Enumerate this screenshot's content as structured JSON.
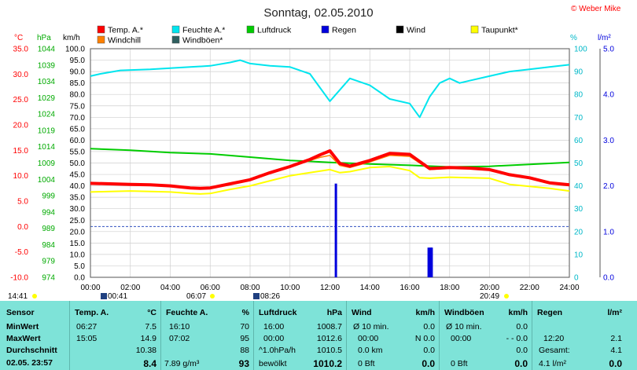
{
  "title": "Sonntag, 02.05.2010",
  "credit": "© Weber Mike",
  "colors": {
    "temp": "#ff0000",
    "humidity": "#00e5ee",
    "pressure": "#00cc00",
    "rain": "#0000dd",
    "wind": "#000000",
    "dewpoint": "#ffff00",
    "windchill": "#ff8000",
    "gust": "#306060"
  },
  "legend": [
    {
      "label": "Temp. A.*",
      "color": "#ff0000"
    },
    {
      "label": "Feuchte A.*",
      "color": "#00e5ee"
    },
    {
      "label": "Luftdruck",
      "color": "#00cc00"
    },
    {
      "label": "Regen",
      "color": "#0000dd"
    },
    {
      "label": "Wind",
      "color": "#000000"
    },
    {
      "label": "Taupunkt*",
      "color": "#ffff00"
    },
    {
      "label": "Windchill",
      "color": "#ff8000"
    },
    {
      "label": "Windböen*",
      "color": "#306060"
    }
  ],
  "axis_headers": {
    "temp": "°C",
    "pressure": "hPa",
    "wind": "km/h",
    "humidity": "%",
    "rain": "l/m²"
  },
  "markers": {
    "sunrise": "06:07",
    "sunset": "20:49",
    "moonrise": "00:41",
    "moonset": "08:26",
    "day_start": "14:41"
  },
  "chart_data": {
    "type": "line",
    "x_ticks": [
      "00:00",
      "02:00",
      "04:00",
      "06:00",
      "08:00",
      "10:00",
      "12:00",
      "14:00",
      "16:00",
      "18:00",
      "20:00",
      "22:00",
      "24:00"
    ],
    "temp_ticks": [
      "35.0",
      "30.0",
      "25.0",
      "20.0",
      "15.0",
      "10.0",
      "5.0",
      "0.0",
      "-5.0",
      "-10.0"
    ],
    "pressure_ticks": [
      "1044",
      "1039",
      "1034",
      "1029",
      "1024",
      "1019",
      "1014",
      "1009",
      "1004",
      "999",
      "994",
      "989",
      "984",
      "979",
      "974"
    ],
    "wind_ticks": [
      "100.0",
      "95.0",
      "90.0",
      "85.0",
      "80.0",
      "75.0",
      "70.0",
      "65.0",
      "60.0",
      "55.0",
      "50.0",
      "45.0",
      "40.0",
      "35.0",
      "30.0",
      "25.0",
      "20.0",
      "15.0",
      "10.0",
      "5.0",
      "0.0"
    ],
    "humidity_ticks": [
      "100",
      "90",
      "80",
      "70",
      "60",
      "50",
      "40",
      "30",
      "20",
      "10",
      "0"
    ],
    "rain_ticks": [
      "5.0",
      "4.0",
      "3.0",
      "2.0",
      "1.0",
      "0.0"
    ],
    "temp_ylim": [
      -10,
      35
    ],
    "humidity_ylim": [
      0,
      100
    ],
    "rain_ylim": [
      0,
      5
    ],
    "series": [
      {
        "name": "Temp. A.*",
        "axis": "temp",
        "x": [
          0,
          1,
          2,
          3,
          4,
          5,
          5.5,
          6,
          7,
          8,
          9,
          10,
          11,
          11.5,
          12,
          12.5,
          13,
          14,
          15,
          16,
          16.5,
          17,
          18,
          19,
          20,
          21,
          22,
          23,
          24
        ],
        "y": [
          8.5,
          8.4,
          8.3,
          8.2,
          8.0,
          7.6,
          7.5,
          7.6,
          8.4,
          9.2,
          10.6,
          11.8,
          13.2,
          14.1,
          14.9,
          12.4,
          11.9,
          13.0,
          14.4,
          14.2,
          12.8,
          11.4,
          11.6,
          11.5,
          11.2,
          10.2,
          9.6,
          8.6,
          8.2
        ]
      },
      {
        "name": "Windchill",
        "axis": "temp",
        "x": [
          0,
          1,
          2,
          3,
          4,
          5,
          5.5,
          6,
          7,
          8,
          9,
          10,
          11,
          11.5,
          12,
          12.5,
          13,
          14,
          15,
          16,
          16.5,
          17,
          18,
          19,
          20,
          21,
          22,
          23,
          24
        ],
        "y": [
          8.5,
          8.4,
          8.3,
          8.2,
          8.0,
          7.6,
          7.5,
          7.6,
          8.4,
          9.2,
          10.6,
          11.8,
          13.0,
          13.6,
          14.0,
          12.0,
          11.6,
          12.7,
          14.0,
          13.8,
          12.5,
          11.2,
          11.5,
          11.4,
          11.1,
          10.1,
          9.5,
          8.5,
          8.1
        ]
      },
      {
        "name": "Taupunkt*",
        "axis": "temp",
        "x": [
          0,
          1,
          2,
          3,
          4,
          5,
          5.5,
          6,
          7,
          8,
          9,
          10,
          11,
          12,
          12.5,
          13,
          14,
          15,
          16,
          16.5,
          17,
          18,
          19,
          20,
          21,
          22,
          23,
          24
        ],
        "y": [
          6.8,
          6.9,
          7.0,
          6.9,
          6.8,
          6.5,
          6.4,
          6.5,
          7.3,
          8.0,
          9.0,
          10.0,
          10.6,
          11.2,
          10.6,
          10.8,
          11.6,
          11.8,
          11.0,
          9.6,
          9.5,
          9.7,
          9.6,
          9.5,
          8.3,
          7.9,
          7.5,
          7.0
        ]
      },
      {
        "name": "Feuchte A.*",
        "axis": "humidity",
        "x": [
          0,
          0.5,
          1.5,
          3,
          4,
          5,
          6,
          7,
          7.5,
          8,
          9,
          10,
          11,
          11.5,
          12,
          13,
          14,
          15,
          16,
          16.5,
          17,
          17.5,
          18,
          18.5,
          19,
          20,
          21,
          22,
          23,
          24
        ],
        "y": [
          88,
          89,
          90.5,
          91,
          91.5,
          92,
          92.5,
          94,
          95,
          93.5,
          92.5,
          92,
          89,
          83,
          77,
          87,
          84,
          78,
          76,
          70,
          79,
          85,
          87,
          85,
          86,
          88,
          90,
          91,
          92,
          93
        ]
      },
      {
        "name": "Luftdruck",
        "axis": "pressure",
        "x": [
          0,
          2,
          4,
          6,
          8,
          10,
          12,
          14,
          16,
          18,
          20,
          22,
          24
        ],
        "y": [
          1013.4,
          1012.9,
          1012.2,
          1011.8,
          1010.8,
          1009.8,
          1009.2,
          1008.7,
          1008.3,
          1007.8,
          1008.0,
          1008.6,
          1009.2
        ]
      },
      {
        "name": "Regen",
        "axis": "rain",
        "type": "bar",
        "x": [
          12.3,
          16.95,
          17.05,
          17.1
        ],
        "y": [
          2.05,
          0.65,
          0.65,
          0.65
        ]
      }
    ]
  },
  "table": {
    "row_labels": {
      "title": "Sensor",
      "min": "MinWert",
      "max": "MaxWert",
      "avg": "Durchschnitt",
      "date": "02.05. 23:57"
    },
    "temp": {
      "title": "Temp. A.",
      "unit": "°C",
      "min_time": "06:27",
      "min": "7.5",
      "max_time": "15:05",
      "max": "14.9",
      "avg": "10.38",
      "cur": "8.4"
    },
    "humidity": {
      "title": "Feuchte A.",
      "unit": "%",
      "min_time": "16:10",
      "min": "70",
      "max_time": "07:02",
      "max": "95",
      "avg": "88",
      "cur_abs": "7.89 g/m³",
      "cur": "93"
    },
    "pressure": {
      "title": "Luftdruck",
      "unit": "hPa",
      "min_time": "16:00",
      "min": "1008.7",
      "max_time": "00:00",
      "max": "1012.6",
      "trend": "^1.0hPa/h",
      "avg": "1010.5",
      "cond": "bewölkt",
      "cur": "1010.2"
    },
    "wind": {
      "title": "Wind",
      "unit": "km/h",
      "r1a": "Ø 10 min.",
      "r1b": "0.0",
      "r2a": "00:00",
      "r2b": "N 0.0",
      "r3a": "0.0 km",
      "r3b": "0.0",
      "r4a": "0 Bft",
      "r4b": "0.0"
    },
    "gust": {
      "title": "Windböen",
      "unit": "km/h",
      "r1a": "Ø 10 min.",
      "r1b": "0.0",
      "r2a": "00:00",
      "r2b": "- - 0.0",
      "r3b": "0.0",
      "r4a": "0 Bft",
      "r4b": "0.0"
    },
    "rain": {
      "title": "Regen",
      "unit": "l/m²",
      "r2a": "12:20",
      "r2b": "2.1",
      "r3a": "Gesamt:",
      "r3b": "4.1",
      "r4a": "4.1 l/m²",
      "r4b": "0.0"
    }
  }
}
